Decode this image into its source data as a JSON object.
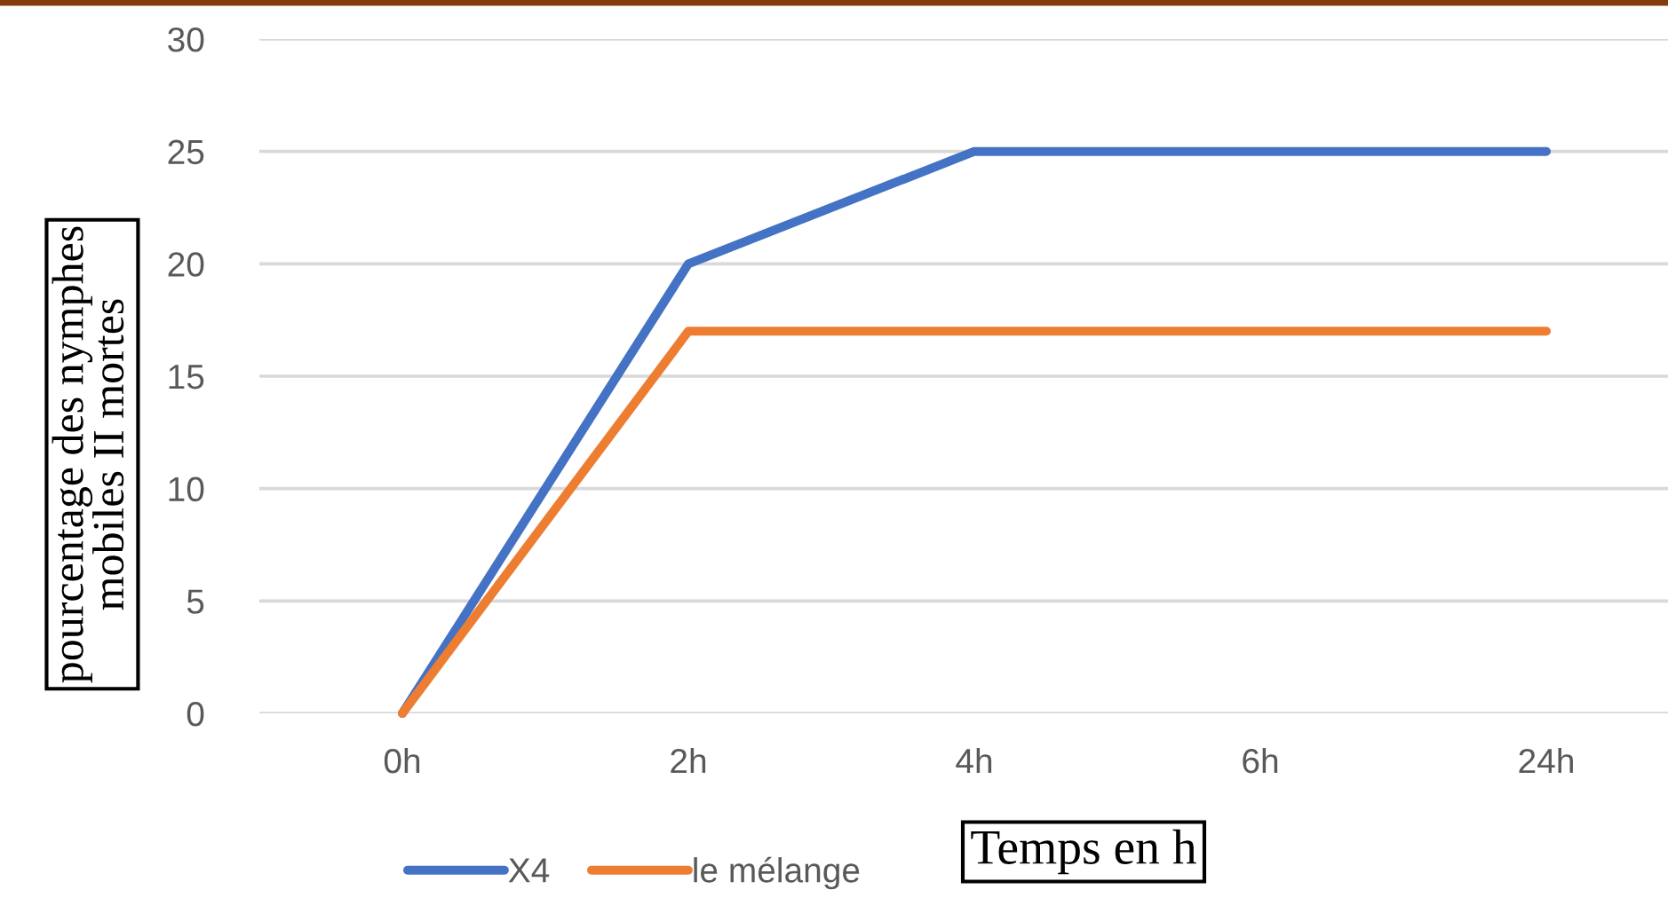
{
  "chart_data": {
    "type": "line",
    "categories": [
      "0h",
      "2h",
      "4h",
      "6h",
      "24h"
    ],
    "series": [
      {
        "name": "X4",
        "color": "#4472c4",
        "values": [
          0,
          20,
          25,
          25,
          25
        ]
      },
      {
        "name": "le mélange",
        "color": "#ed7d31",
        "values": [
          0,
          17,
          17,
          17,
          17
        ]
      }
    ],
    "xlabel": "Temps en h",
    "ylabel": "pourcentage des nymphes\nmobiles II mortes",
    "ylim": [
      0,
      30
    ],
    "yticks": [
      0,
      5,
      10,
      15,
      20,
      25,
      30
    ],
    "grid": "y",
    "legend": "bottom",
    "line_style": "solid"
  }
}
